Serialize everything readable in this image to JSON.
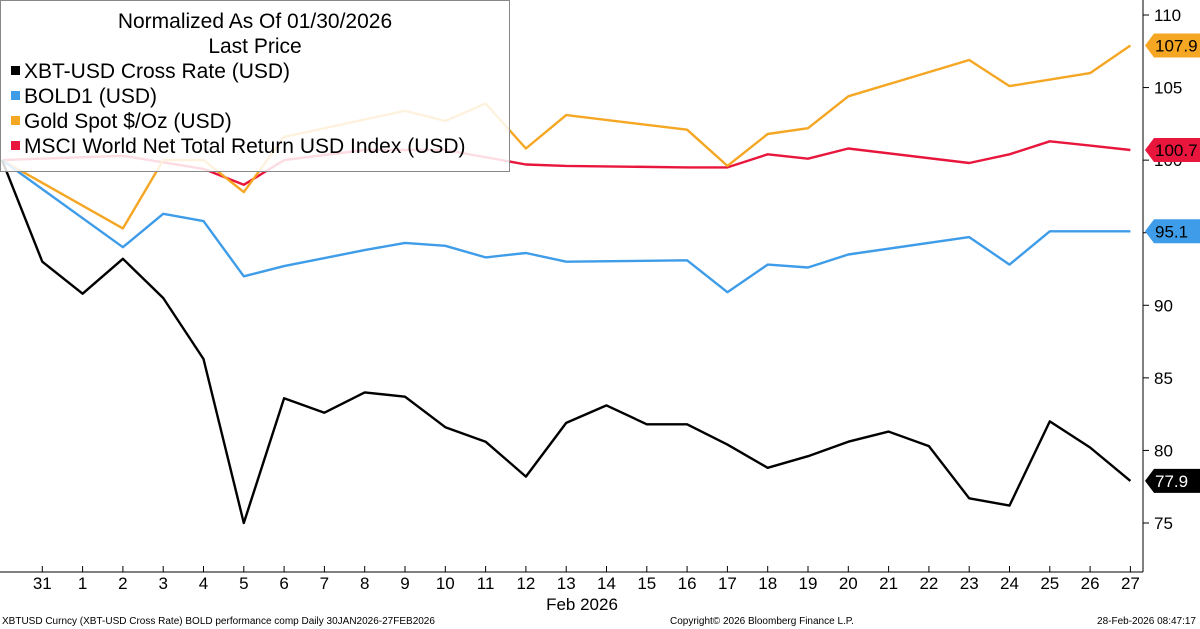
{
  "chart_data": {
    "type": "line",
    "title": "Normalized As Of 01/30/2026",
    "subtitle": "Last Price",
    "x": [
      "31",
      "1",
      "2",
      "3",
      "4",
      "5",
      "6",
      "7",
      "8",
      "9",
      "10",
      "11",
      "12",
      "13",
      "14",
      "15",
      "16",
      "17",
      "18",
      "19",
      "20",
      "21",
      "22",
      "23",
      "24",
      "25",
      "26",
      "27"
    ],
    "xlabel": "Feb 2026",
    "ylim": [
      72,
      111
    ],
    "yticks": [
      75,
      80,
      85,
      90,
      95,
      100,
      105,
      110
    ],
    "grid": false,
    "legend_placement": "top-left",
    "series": [
      {
        "name": "XBT-USD Cross Rate (USD)",
        "color": "#000000",
        "last_label": "77.9",
        "points": [
          [
            0,
            100
          ],
          [
            1,
            93
          ],
          [
            2,
            90.8
          ],
          [
            3,
            93.2
          ],
          [
            4,
            90.5
          ],
          [
            5,
            86.3
          ],
          [
            6,
            75
          ],
          [
            7,
            83.6
          ],
          [
            8,
            82.6
          ],
          [
            9,
            84
          ],
          [
            10,
            83.7
          ],
          [
            11,
            81.6
          ],
          [
            12,
            80.6
          ],
          [
            13,
            78.2
          ],
          [
            14,
            81.9
          ],
          [
            15,
            83.1
          ],
          [
            16,
            81.8
          ],
          [
            17,
            81.8
          ],
          [
            18,
            80.4
          ],
          [
            19,
            78.8
          ],
          [
            20,
            79.6
          ],
          [
            21,
            80.6
          ],
          [
            22,
            81.3
          ],
          [
            23,
            80.3
          ],
          [
            24,
            76.7
          ],
          [
            25,
            76.2
          ],
          [
            26,
            82
          ],
          [
            27,
            80.2
          ],
          [
            28,
            77.9
          ]
        ]
      },
      {
        "name": "BOLD1 (USD)",
        "color": "#3e9ce8",
        "last_label": "95.1",
        "points": [
          [
            0,
            100
          ],
          [
            3,
            94
          ],
          [
            4,
            96.3
          ],
          [
            5,
            95.8
          ],
          [
            6,
            92
          ],
          [
            7,
            92.7
          ],
          [
            9,
            93.8
          ],
          [
            10,
            94.3
          ],
          [
            11,
            94.1
          ],
          [
            12,
            93.3
          ],
          [
            13,
            93.6
          ],
          [
            14,
            93
          ],
          [
            17,
            93.1
          ],
          [
            18,
            90.9
          ],
          [
            19,
            92.8
          ],
          [
            20,
            92.6
          ],
          [
            21,
            93.5
          ],
          [
            24,
            94.7
          ],
          [
            25,
            92.8
          ],
          [
            26,
            95.1
          ],
          [
            27,
            95.1
          ],
          [
            28,
            95.1
          ]
        ]
      },
      {
        "name": "Gold Spot $/Oz (USD)",
        "color": "#f5a623",
        "last_label": "107.9",
        "points": [
          [
            0,
            100
          ],
          [
            3,
            95.3
          ],
          [
            4,
            100
          ],
          [
            5,
            100
          ],
          [
            6,
            97.8
          ],
          [
            7,
            101.6
          ],
          [
            10,
            103.4
          ],
          [
            11,
            102.7
          ],
          [
            12,
            103.9
          ],
          [
            13,
            100.8
          ],
          [
            14,
            103.1
          ],
          [
            17,
            102.1
          ],
          [
            18,
            99.6
          ],
          [
            19,
            101.8
          ],
          [
            20,
            102.2
          ],
          [
            21,
            104.4
          ],
          [
            24,
            106.9
          ],
          [
            25,
            105.1
          ],
          [
            27,
            106
          ],
          [
            28,
            107.9
          ]
        ]
      },
      {
        "name": "MSCI World Net Total Return USD Index (USD)",
        "color": "#e8163c",
        "last_label": "100.7",
        "points": [
          [
            0,
            100
          ],
          [
            3,
            100.3
          ],
          [
            5,
            99.4
          ],
          [
            6,
            98.3
          ],
          [
            7,
            100
          ],
          [
            9,
            100.7
          ],
          [
            11,
            100.7
          ],
          [
            13,
            99.7
          ],
          [
            14,
            99.6
          ],
          [
            17,
            99.5
          ],
          [
            18,
            99.5
          ],
          [
            19,
            100.4
          ],
          [
            20,
            100.1
          ],
          [
            21,
            100.8
          ],
          [
            24,
            99.8
          ],
          [
            25,
            100.4
          ],
          [
            26,
            101.3
          ],
          [
            27,
            101
          ],
          [
            28,
            100.7
          ]
        ]
      }
    ]
  },
  "footer": {
    "left": "XBTUSD Curncy (XBT-USD Cross Rate) BOLD performance comp Daily 30JAN2026-27FEB2026",
    "mid": "Copyright© 2026 Bloomberg Finance L.P.",
    "right": "28-Feb-2026 08:47:17"
  }
}
